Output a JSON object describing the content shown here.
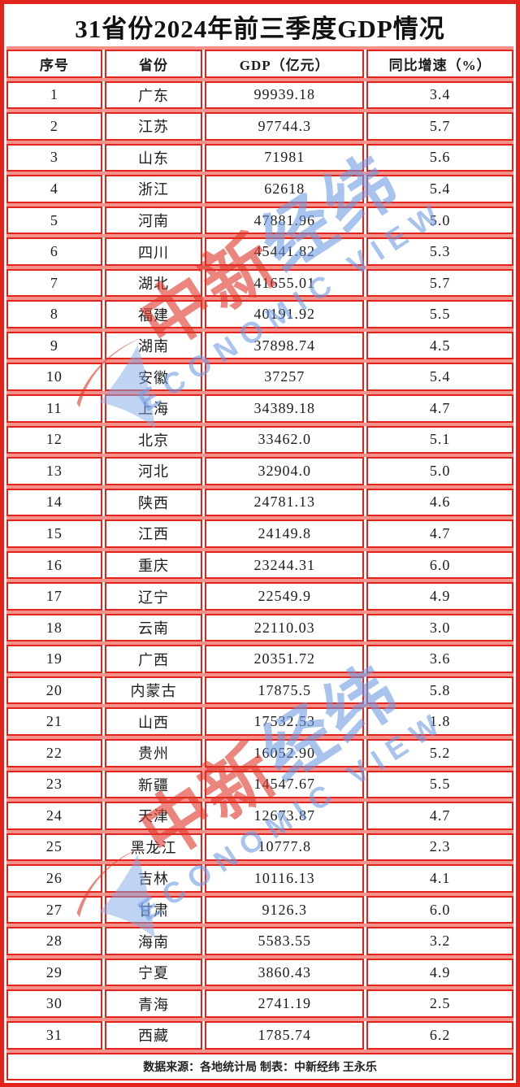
{
  "chart_data": {
    "type": "table",
    "title": "31省份2024年前三季度GDP情况",
    "columns": [
      "序号",
      "省份",
      "GDP（亿元）",
      "同比增速（%）"
    ],
    "rows": [
      [
        "1",
        "广东",
        "99939.18",
        "3.4"
      ],
      [
        "2",
        "江苏",
        "97744.3",
        "5.7"
      ],
      [
        "3",
        "山东",
        "71981",
        "5.6"
      ],
      [
        "4",
        "浙江",
        "62618",
        "5.4"
      ],
      [
        "5",
        "河南",
        "47881.96",
        "5.0"
      ],
      [
        "6",
        "四川",
        "45441.82",
        "5.3"
      ],
      [
        "7",
        "湖北",
        "41655.01",
        "5.7"
      ],
      [
        "8",
        "福建",
        "40191.92",
        "5.5"
      ],
      [
        "9",
        "湖南",
        "37898.74",
        "4.5"
      ],
      [
        "10",
        "安徽",
        "37257",
        "5.4"
      ],
      [
        "11",
        "上海",
        "34389.18",
        "4.7"
      ],
      [
        "12",
        "北京",
        "33462.0",
        "5.1"
      ],
      [
        "13",
        "河北",
        "32904.0",
        "5.0"
      ],
      [
        "14",
        "陕西",
        "24781.13",
        "4.6"
      ],
      [
        "15",
        "江西",
        "24149.8",
        "4.7"
      ],
      [
        "16",
        "重庆",
        "23244.31",
        "6.0"
      ],
      [
        "17",
        "辽宁",
        "22549.9",
        "4.9"
      ],
      [
        "18",
        "云南",
        "22110.03",
        "3.0"
      ],
      [
        "19",
        "广西",
        "20351.72",
        "3.6"
      ],
      [
        "20",
        "内蒙古",
        "17875.5",
        "5.8"
      ],
      [
        "21",
        "山西",
        "17532.53",
        "1.8"
      ],
      [
        "22",
        "贵州",
        "16052.90",
        "5.2"
      ],
      [
        "23",
        "新疆",
        "14547.67",
        "5.5"
      ],
      [
        "24",
        "天津",
        "12673.87",
        "4.7"
      ],
      [
        "25",
        "黑龙江",
        "10777.8",
        "2.3"
      ],
      [
        "26",
        "吉林",
        "10116.13",
        "4.1"
      ],
      [
        "27",
        "甘肃",
        "9126.3",
        "6.0"
      ],
      [
        "28",
        "海南",
        "5583.55",
        "3.2"
      ],
      [
        "29",
        "宁夏",
        "3860.43",
        "4.9"
      ],
      [
        "30",
        "青海",
        "2741.19",
        "2.5"
      ],
      [
        "31",
        "西藏",
        "1785.74",
        "6.2"
      ]
    ],
    "layout": {
      "grid": "on",
      "header_bold": true
    }
  },
  "footer": {
    "text": "数据来源：各地统计局 制表：中新经纬 王永乐"
  },
  "watermark": {
    "cn_red": "中新",
    "cn_blue": "经纬",
    "en": "ECONOMIC VIEW"
  },
  "colors": {
    "border_red": "#e2251c",
    "row_gap_salmon": "#f4918a",
    "watermark_red": "rgba(222,52,38,0.60)",
    "watermark_blue": "rgba(106,152,227,0.58)",
    "watermark_swoosh_blue": "rgba(128,168,232,0.50)",
    "text_black": "#1c1c1c"
  }
}
